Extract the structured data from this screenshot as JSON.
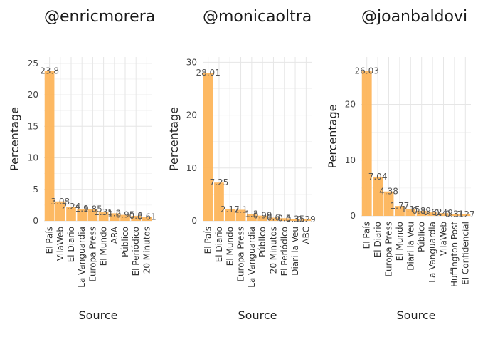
{
  "colors": {
    "bar": "#FDB55B",
    "grid": "#e6e6e6",
    "text": "#444444"
  },
  "chart_data": [
    {
      "type": "bar",
      "title": "@enricmorera",
      "xlabel": "Source",
      "ylabel": "Percentage",
      "ylim": [
        0,
        26
      ],
      "yticks": [
        0,
        5,
        10,
        15,
        20,
        25
      ],
      "categories": [
        "El País",
        "VilaWeb",
        "El Diario",
        "La Vanguardia",
        "Europa Press",
        "El Mundo",
        "ARA",
        "Público",
        "El Periódico",
        "20 Minutos"
      ],
      "values": [
        23.8,
        3.08,
        2.24,
        1.9,
        1.85,
        1.35,
        1.2,
        0.95,
        0.8,
        0.61
      ],
      "data_labels": [
        "23.8",
        "3.08",
        "2.24",
        "1.9",
        "1.85",
        "1.35",
        "1.2",
        "0.95",
        "0.8",
        "0.61"
      ],
      "grid": true
    },
    {
      "type": "bar",
      "title": "@monicaoltra",
      "xlabel": "Source",
      "ylabel": "Percentage",
      "ylim": [
        0,
        31
      ],
      "yticks": [
        0,
        10,
        20,
        30
      ],
      "categories": [
        "El País",
        "El Diario",
        "El Mundo",
        "Europa Press",
        "La Vanguardia",
        "Público",
        "20 Minutos",
        "El Periódico",
        "Diari la Veu",
        "ABC"
      ],
      "values": [
        28.01,
        7.25,
        2.17,
        2.1,
        1.3,
        0.99,
        0.6,
        0.5,
        0.35,
        0.29
      ],
      "data_labels": [
        "28.01",
        "7.25",
        "2.17",
        "2.1",
        "1.3",
        "0.99",
        "0.6",
        "0.5",
        "0.35",
        "0.29"
      ],
      "grid": true
    },
    {
      "type": "bar",
      "title": "@joanbaldovi",
      "xlabel": "Source",
      "ylabel": "Percentage",
      "ylim": [
        0,
        28.5
      ],
      "yticks": [
        0,
        10,
        20
      ],
      "categories": [
        "El País",
        "El Diario",
        "Europa Press",
        "El Mundo",
        "Diari la Veu",
        "Público",
        "La Vanguardia",
        "VilaWeb",
        "Huffington Post",
        "El Confidencial"
      ],
      "values": [
        26.03,
        7.04,
        4.38,
        1.77,
        1.15,
        0.89,
        0.62,
        0.49,
        0.31,
        0.27
      ],
      "data_labels": [
        "26.03",
        "7.04",
        "4.38",
        "1.77",
        "1.15",
        "0.89",
        "0.62",
        "0.49",
        "0.31",
        "0.27"
      ],
      "grid": true
    }
  ]
}
